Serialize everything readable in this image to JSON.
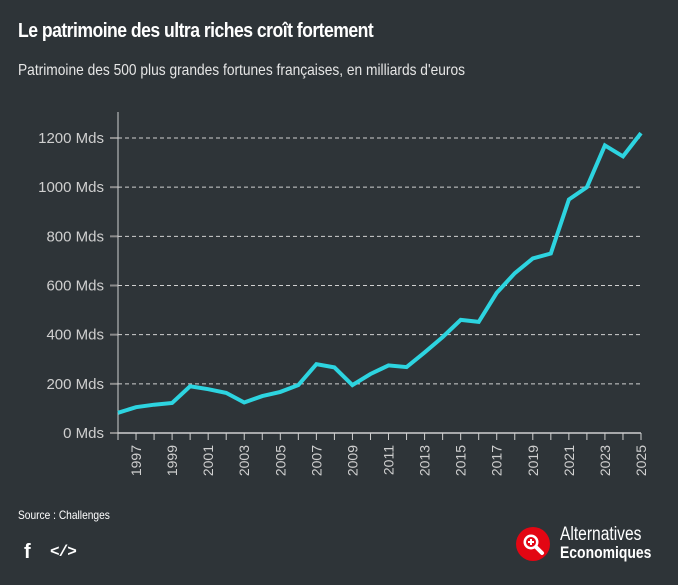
{
  "header": {
    "title": "Le patrimoine des ultra riches croît fortement",
    "subtitle": "Patrimoine des 500 plus grandes fortunes françaises, en milliards d'euros"
  },
  "footer": {
    "source": "Source : Challenges",
    "share_icons": [
      "facebook-icon",
      "embed-code-icon"
    ],
    "facebook_glyph": "f",
    "embed_glyph": "</>",
    "logo_line1": "Alternatives",
    "logo_line2": "Economiques",
    "logo_color": "#e30613"
  },
  "colors": {
    "background": "#2e3438",
    "line": "#2dd4e0",
    "grid": "#d0d0d0",
    "axis": "#cfcfcf"
  },
  "chart_data": {
    "type": "line",
    "title": "Le patrimoine des ultra riches croît fortement",
    "subtitle": "Patrimoine des 500 plus grandes fortunes françaises, en milliards d'euros",
    "xlabel": "",
    "ylabel": "",
    "x": [
      1996,
      1997,
      1998,
      1999,
      2000,
      2001,
      2002,
      2003,
      2004,
      2005,
      2006,
      2007,
      2008,
      2009,
      2010,
      2011,
      2012,
      2013,
      2014,
      2015,
      2016,
      2017,
      2018,
      2019,
      2020,
      2021,
      2022,
      2023,
      2024,
      2025
    ],
    "series": [
      {
        "name": "Patrimoine des 500 plus grandes fortunes",
        "values": [
          82,
          105,
          115,
          122,
          190,
          178,
          163,
          124,
          150,
          167,
          195,
          280,
          267,
          195,
          240,
          275,
          268,
          328,
          390,
          460,
          452,
          570,
          650,
          710,
          730,
          950,
          1000,
          1170,
          1125,
          1220
        ]
      }
    ],
    "xlim": [
      1996,
      2025
    ],
    "ylim": [
      0,
      1200
    ],
    "x_tick_labels": [
      "1997",
      "1999",
      "2001",
      "2003",
      "2005",
      "2007",
      "2009",
      "2011",
      "2013",
      "2015",
      "2017",
      "2019",
      "2021",
      "2023",
      "2025"
    ],
    "y_ticks": [
      0,
      200,
      400,
      600,
      800,
      1000,
      1200
    ],
    "y_tick_labels": [
      "0 Mds",
      "200 Mds",
      "400 Mds",
      "600 Mds",
      "800 Mds",
      "1000 Mds",
      "1200 Mds"
    ],
    "grid": "horizontal dashed",
    "legend": "none"
  }
}
